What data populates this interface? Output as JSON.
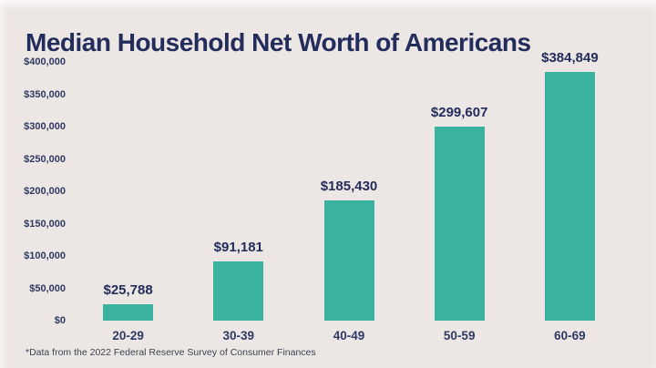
{
  "page": {
    "title": "Median Household Net Worth of Americans",
    "footnote": "*Data from the 2022 Federal Reserve Survey of Consumer Finances"
  },
  "colors": {
    "background": "#ECE7E5",
    "bar": "#3AB2A0",
    "title_text": "#232D5C",
    "axis_text": "#2F3962",
    "footnote_text": "#3B4252"
  },
  "chart_data": {
    "type": "bar",
    "title": "Median Household Net Worth of Americans",
    "categories": [
      "20-29",
      "30-39",
      "40-49",
      "50-59",
      "60-69"
    ],
    "values": [
      25788,
      91181,
      185430,
      299607,
      384849
    ],
    "value_labels": [
      "$25,788",
      "$91,181",
      "$185,430",
      "$299,607",
      "$384,849"
    ],
    "xlabel": "",
    "ylabel": "",
    "ylim": [
      0,
      400000
    ],
    "y_tick_values": [
      400000,
      350000,
      300000,
      250000,
      200000,
      150000,
      100000,
      50000,
      0
    ],
    "y_tick_labels": [
      "$400,000",
      "$350,000",
      "$300,000",
      "$250,000",
      "$200,000",
      "$150,000",
      "$100,000",
      "$50,000",
      "$0"
    ],
    "grid": false,
    "legend": false,
    "axis_lines": false,
    "footnote": "*Data from the 2022 Federal Reserve Survey of Consumer Finances"
  }
}
